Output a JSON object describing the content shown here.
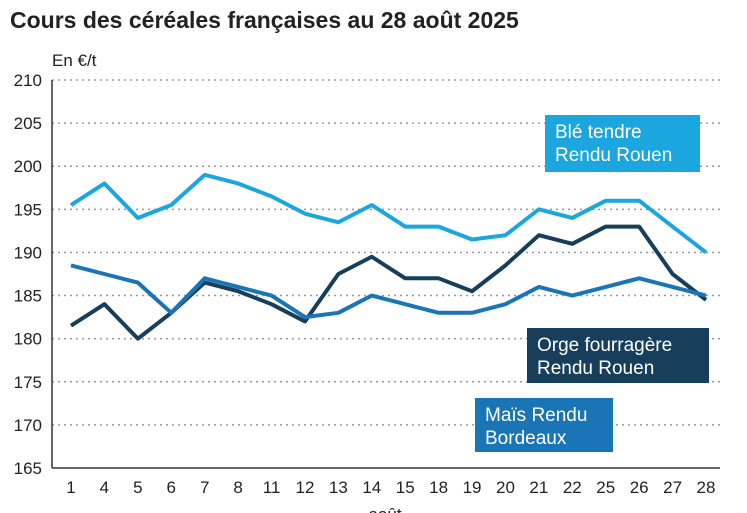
{
  "chart_data": {
    "type": "line",
    "title": "Cours des céréales françaises au 28 août 2025",
    "y_label": "En €/t",
    "x_label": "août",
    "categories": [
      "1",
      "4",
      "5",
      "6",
      "7",
      "8",
      "11",
      "12",
      "13",
      "14",
      "15",
      "18",
      "19",
      "20",
      "21",
      "22",
      "25",
      "26",
      "27",
      "28"
    ],
    "series": [
      {
        "name": [
          "Blé tendre",
          "Rendu Rouen"
        ],
        "color": "#1ba6df",
        "values": [
          195.5,
          198,
          194,
          195.5,
          199,
          198,
          196.5,
          194.5,
          193.5,
          195.5,
          193,
          193,
          191.5,
          192,
          195,
          194,
          196,
          196,
          193,
          190
        ]
      },
      {
        "name": [
          "Orge fourragère",
          "Rendu Rouen"
        ],
        "color": "#173f5c",
        "values": [
          181.5,
          184,
          180,
          183,
          186.5,
          185.5,
          184,
          182,
          187.5,
          189.5,
          187,
          187,
          185.5,
          188.5,
          192,
          191,
          193,
          193,
          187.5,
          184.5
        ]
      },
      {
        "name": [
          "Maïs Rendu",
          "Bordeaux"
        ],
        "color": "#1a75b7",
        "values": [
          188.5,
          187.5,
          186.5,
          183,
          187,
          186,
          185,
          182.5,
          183,
          185,
          184,
          183,
          183,
          184,
          186,
          185,
          186,
          187,
          186,
          185
        ]
      }
    ],
    "ylim": [
      165,
      210
    ],
    "yticks": [
      165,
      170,
      175,
      180,
      185,
      190,
      195,
      200,
      205,
      210
    ],
    "grid": true
  }
}
